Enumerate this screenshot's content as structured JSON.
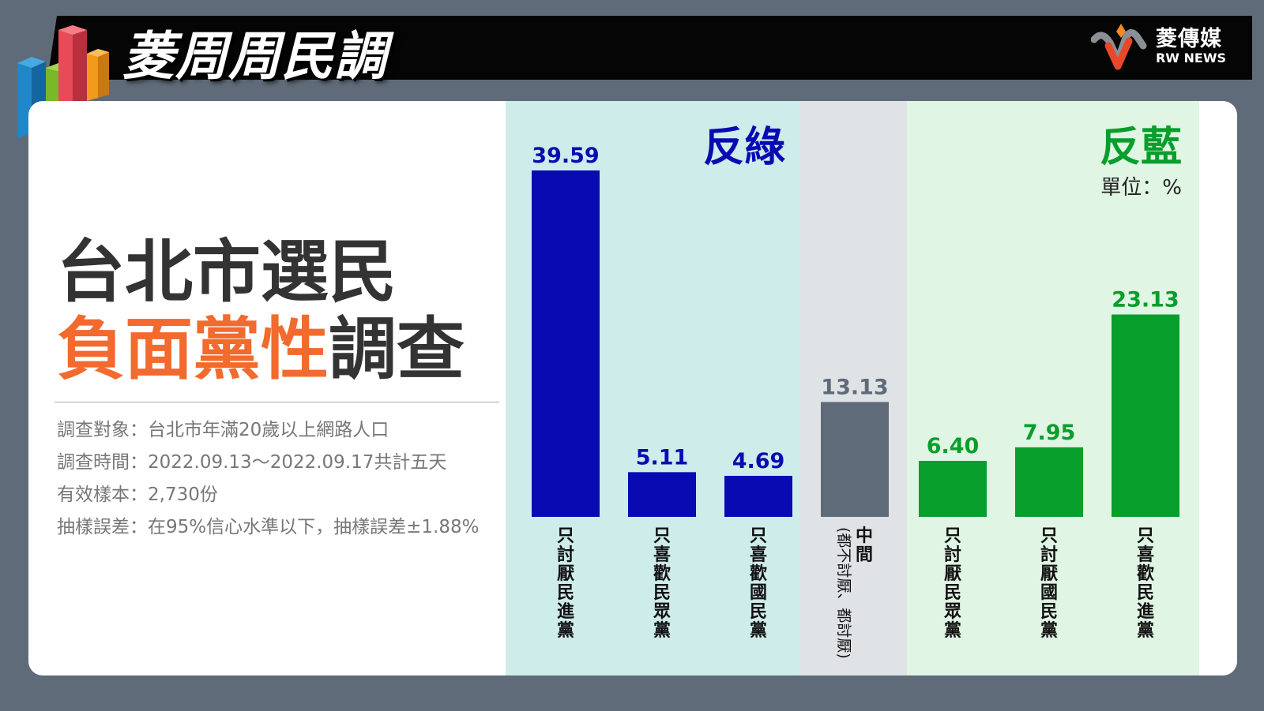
{
  "header": {
    "title": "菱周周民調",
    "brand_cn": "菱傳媒",
    "brand_en": "RW NEWS"
  },
  "headline": {
    "line1": "台北市選民",
    "line2_highlight": "負面黨性",
    "line2_rest": "調查"
  },
  "info": [
    {
      "label": "調查對象",
      "value": "台北市年滿20歲以上網路人口"
    },
    {
      "label": "調查時間",
      "value": "2022.09.13～2022.09.17共計五天"
    },
    {
      "label": "有效樣本",
      "value": "2,730份"
    },
    {
      "label": "抽樣誤差",
      "value": "在95%信心水準以下，抽樣誤差±1.88%"
    }
  ],
  "colors": {
    "blue": "#0a0ab2",
    "gray": "#5f6b78",
    "green": "#079e2c",
    "orange": "#f26a2e",
    "bg_blue_zone": "#cdecea",
    "bg_gray_zone": "#dfe3e6",
    "bg_green_zone": "#e0f5e3"
  },
  "chart_data": {
    "type": "bar",
    "unit_label": "單位：%",
    "groups": [
      {
        "label": "反綠",
        "color": "#0a0ab2",
        "categories": [
          0,
          1,
          2
        ]
      },
      {
        "label": "",
        "color": "#5f6b78",
        "categories": [
          3
        ]
      },
      {
        "label": "反藍",
        "color": "#079e2c",
        "categories": [
          4,
          5,
          6
        ]
      }
    ],
    "categories": [
      "只討厭民進黨",
      "只喜歡民眾黨",
      "只喜歡國民黨",
      "中間",
      "只討厭民眾黨",
      "只討厭國民黨",
      "只喜歡民進黨"
    ],
    "sublabels": [
      "",
      "",
      "",
      "(都不討厭、都討厭)",
      "",
      "",
      ""
    ],
    "values": [
      39.59,
      5.11,
      4.69,
      13.13,
      6.4,
      7.95,
      23.13
    ],
    "value_labels": [
      "39.59",
      "5.11",
      "4.69",
      "13.13",
      "6.40",
      "7.95",
      "23.13"
    ],
    "bar_colors": [
      "#0a0ab2",
      "#0a0ab2",
      "#0a0ab2",
      "#5f6b78",
      "#079e2c",
      "#079e2c",
      "#079e2c"
    ],
    "ylim": [
      0,
      40
    ]
  }
}
